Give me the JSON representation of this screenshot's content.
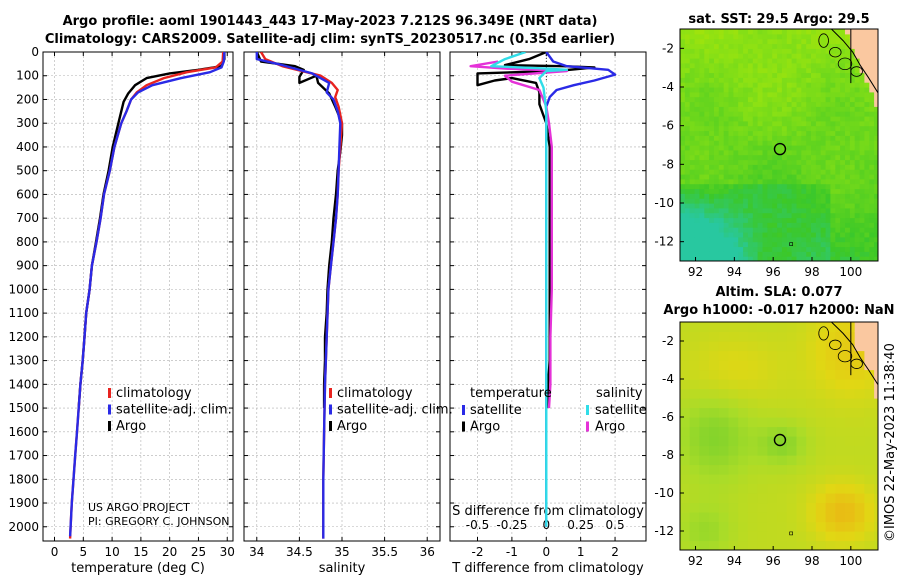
{
  "header": {
    "title_line1": "Argo profile: aoml 1901443_443 17-May-2023 7.212S 96.349E (NRT data)",
    "title_line2": "Climatology: CARS2009. Satellite-adj clim: synTS_20230517.nc (0.35d earlier)"
  },
  "credits": {
    "project": "US ARGO PROJECT",
    "pi": "PI: GREGORY C. JOHNSON",
    "imos": "©IMOS 22-May-2023 11:38:40"
  },
  "colors": {
    "climatology": "#e8231f",
    "satellite_clim": "#2a2ae6",
    "argo": "#000000",
    "salinity_satellite": "#30dde8",
    "salinity_argo": "#e532d8"
  },
  "depth_axis": {
    "ticks": [
      0,
      100,
      200,
      300,
      400,
      500,
      600,
      700,
      800,
      900,
      1000,
      1100,
      1200,
      1300,
      1400,
      1500,
      1600,
      1700,
      1800,
      1900,
      2000
    ],
    "ylim": [
      0,
      2060
    ]
  },
  "chart_data": [
    {
      "type": "line",
      "id": "temperature",
      "xlabel": "temperature (deg C)",
      "xlim": [
        -2,
        31
      ],
      "xticks": [
        0,
        5,
        10,
        15,
        20,
        25,
        30
      ],
      "legend": [
        "climatology",
        "satellite-adj. clim.",
        "Argo"
      ],
      "series": [
        {
          "name": "climatology",
          "points": [
            [
              29.3,
              0
            ],
            [
              29.2,
              40
            ],
            [
              28,
              65
            ],
            [
              23,
              85
            ],
            [
              19,
              110
            ],
            [
              16,
              140
            ],
            [
              14.3,
              170
            ],
            [
              13.3,
              200
            ],
            [
              12.5,
              250
            ],
            [
              11.6,
              300
            ],
            [
              11,
              350
            ],
            [
              10.4,
              400
            ],
            [
              9.6,
              500
            ],
            [
              8.6,
              600
            ],
            [
              8,
              700
            ],
            [
              7.3,
              800
            ],
            [
              6.5,
              900
            ],
            [
              6.1,
              1000
            ],
            [
              5.5,
              1100
            ],
            [
              5.2,
              1200
            ],
            [
              4.9,
              1300
            ],
            [
              4.5,
              1400
            ],
            [
              4.2,
              1500
            ],
            [
              3.9,
              1600
            ],
            [
              3.6,
              1700
            ],
            [
              3.3,
              1800
            ],
            [
              3.0,
              1900
            ],
            [
              2.8,
              2000
            ],
            [
              2.7,
              2050
            ]
          ]
        },
        {
          "name": "satellite-adj. clim.",
          "points": [
            [
              29.5,
              0
            ],
            [
              29.4,
              40
            ],
            [
              29,
              65
            ],
            [
              27,
              85
            ],
            [
              22,
              110
            ],
            [
              17,
              140
            ],
            [
              14.5,
              170
            ],
            [
              13.3,
              200
            ],
            [
              12.5,
              250
            ],
            [
              11.6,
              300
            ],
            [
              11,
              350
            ],
            [
              10.4,
              400
            ],
            [
              9.6,
              500
            ],
            [
              8.6,
              600
            ],
            [
              8,
              700
            ],
            [
              7.3,
              800
            ],
            [
              6.5,
              900
            ],
            [
              6.1,
              1000
            ],
            [
              5.5,
              1100
            ],
            [
              5.2,
              1200
            ],
            [
              4.9,
              1300
            ],
            [
              4.5,
              1400
            ],
            [
              4.2,
              1500
            ],
            [
              3.9,
              1600
            ],
            [
              3.6,
              1700
            ],
            [
              3.3,
              1800
            ],
            [
              3.0,
              1900
            ],
            [
              2.8,
              2000
            ],
            [
              2.7,
              2040
            ]
          ]
        },
        {
          "name": "Argo",
          "points": [
            [
              29.5,
              0
            ],
            [
              29.5,
              30
            ],
            [
              29,
              60
            ],
            [
              25,
              75
            ],
            [
              20,
              90
            ],
            [
              16,
              110
            ],
            [
              14,
              140
            ],
            [
              12.8,
              175
            ],
            [
              12,
              210
            ],
            [
              11.5,
              260
            ],
            [
              11.1,
              300
            ],
            [
              10.6,
              350
            ],
            [
              10.1,
              400
            ],
            [
              9.4,
              500
            ],
            [
              8.5,
              600
            ],
            [
              7.9,
              700
            ],
            [
              7.2,
              800
            ],
            [
              6.5,
              900
            ],
            [
              6.1,
              1000
            ],
            [
              5.5,
              1100
            ],
            [
              5.2,
              1200
            ],
            [
              4.9,
              1300
            ],
            [
              4.5,
              1400
            ],
            [
              4.2,
              1500
            ]
          ]
        }
      ]
    },
    {
      "type": "line",
      "id": "salinity",
      "xlabel": "salinity",
      "xlim": [
        33.85,
        36.15
      ],
      "xticks": [
        34,
        34.5,
        35,
        35.5,
        36
      ],
      "legend": [
        "climatology",
        "satellite-adj. clim.",
        "Argo"
      ],
      "series": [
        {
          "name": "climatology",
          "points": [
            [
              34.05,
              0
            ],
            [
              34.1,
              30
            ],
            [
              34.3,
              60
            ],
            [
              34.75,
              100
            ],
            [
              34.88,
              130
            ],
            [
              34.95,
              160
            ],
            [
              34.92,
              190
            ],
            [
              34.96,
              230
            ],
            [
              35.0,
              300
            ],
            [
              34.98,
              400
            ],
            [
              34.96,
              500
            ],
            [
              34.95,
              600
            ],
            [
              34.93,
              700
            ],
            [
              34.9,
              800
            ],
            [
              34.87,
              900
            ],
            [
              34.84,
              1000
            ],
            [
              34.82,
              1200
            ],
            [
              34.8,
              1400
            ],
            [
              34.79,
              1600
            ],
            [
              34.78,
              1800
            ],
            [
              34.78,
              2000
            ],
            [
              34.78,
              2050
            ]
          ]
        },
        {
          "name": "satellite-adj. clim.",
          "points": [
            [
              34.0,
              0
            ],
            [
              34.0,
              30
            ],
            [
              34.3,
              55
            ],
            [
              34.65,
              90
            ],
            [
              34.85,
              130
            ],
            [
              34.82,
              170
            ],
            [
              34.9,
              200
            ],
            [
              34.95,
              250
            ],
            [
              34.98,
              300
            ],
            [
              34.97,
              400
            ],
            [
              34.96,
              500
            ],
            [
              34.95,
              600
            ],
            [
              34.93,
              700
            ],
            [
              34.9,
              800
            ],
            [
              34.87,
              900
            ],
            [
              34.84,
              1000
            ],
            [
              34.82,
              1200
            ],
            [
              34.8,
              1400
            ],
            [
              34.79,
              1600
            ],
            [
              34.78,
              1800
            ],
            [
              34.78,
              2000
            ],
            [
              34.78,
              2050
            ]
          ]
        },
        {
          "name": "Argo",
          "points": [
            [
              34.0,
              0
            ],
            [
              34.05,
              40
            ],
            [
              34.45,
              60
            ],
            [
              34.55,
              75
            ],
            [
              34.5,
              105
            ],
            [
              34.5,
              130
            ],
            [
              34.7,
              100
            ],
            [
              34.72,
              130
            ],
            [
              34.85,
              175
            ],
            [
              34.92,
              230
            ],
            [
              35.0,
              300
            ],
            [
              35.0,
              350
            ],
            [
              34.98,
              420
            ],
            [
              34.95,
              500
            ],
            [
              34.93,
              600
            ],
            [
              34.9,
              700
            ],
            [
              34.88,
              800
            ],
            [
              34.85,
              900
            ],
            [
              34.83,
              1000
            ],
            [
              34.82,
              1100
            ],
            [
              34.8,
              1200
            ],
            [
              34.8,
              1300
            ],
            [
              34.79,
              1400
            ],
            [
              34.79,
              1500
            ]
          ]
        }
      ]
    },
    {
      "type": "line",
      "id": "difference",
      "xlabel": "T difference from climatology",
      "xlabel2": "S difference from climatology",
      "xlim": [
        -2.8,
        2.9
      ],
      "xticks": [
        -2,
        -1,
        0,
        1,
        2
      ],
      "xticks_labels": [
        "-2",
        "-1",
        "0",
        "1",
        "2"
      ],
      "s_ticks": [
        -0.5,
        -0.25,
        0,
        0.25,
        0.5
      ],
      "s_ticks_labels": [
        "-0.5",
        "-0.25",
        "0",
        "0.25",
        "0.5"
      ],
      "legend_left_title": "temperature",
      "legend_right_title": "salinity",
      "legend_left": [
        "satellite",
        "Argo"
      ],
      "legend_right": [
        "satellite",
        "Argo"
      ],
      "series": [
        {
          "name": "T satellite",
          "points": [
            [
              0,
              0
            ],
            [
              0.2,
              40
            ],
            [
              0.6,
              60
            ],
            [
              1.8,
              75
            ],
            [
              2.0,
              95
            ],
            [
              1.4,
              120
            ],
            [
              0.8,
              140
            ],
            [
              0.3,
              160
            ],
            [
              0.1,
              190
            ],
            [
              0,
              230
            ],
            [
              0,
              400
            ],
            [
              0,
              700
            ],
            [
              0,
              1000
            ],
            [
              0,
              1400
            ],
            [
              0,
              1800
            ],
            [
              0,
              2000
            ]
          ]
        },
        {
          "name": "T Argo",
          "points": [
            [
              0,
              0
            ],
            [
              -0.5,
              30
            ],
            [
              -1.2,
              55
            ],
            [
              0.5,
              60
            ],
            [
              1.4,
              65
            ],
            [
              0.3,
              80
            ],
            [
              -2.0,
              90
            ],
            [
              -2.0,
              140
            ],
            [
              -1.5,
              120
            ],
            [
              -1.0,
              110
            ],
            [
              -0.3,
              130
            ],
            [
              -0.2,
              170
            ],
            [
              -0.2,
              220
            ],
            [
              -0.1,
              260
            ],
            [
              0,
              300
            ],
            [
              0.1,
              400
            ],
            [
              0.1,
              500
            ],
            [
              0.1,
              600
            ],
            [
              0.1,
              700
            ],
            [
              0.1,
              800
            ],
            [
              0.1,
              900
            ],
            [
              0.1,
              1000
            ],
            [
              0.1,
              1100
            ],
            [
              0.1,
              1200
            ],
            [
              0.1,
              1300
            ],
            [
              0.05,
              1400
            ],
            [
              0.05,
              1500
            ]
          ]
        },
        {
          "name": "S satellite",
          "points": [
            [
              -0.15,
              0
            ],
            [
              -0.3,
              30
            ],
            [
              -0.4,
              60
            ],
            [
              0,
              70
            ],
            [
              0.15,
              75
            ],
            [
              0,
              80
            ],
            [
              -0.05,
              110
            ],
            [
              -0.02,
              150
            ],
            [
              0,
              250
            ],
            [
              0,
              400
            ],
            [
              0,
              700
            ],
            [
              0,
              1000
            ],
            [
              0,
              1400
            ],
            [
              0,
              1800
            ],
            [
              0,
              2000
            ]
          ]
        },
        {
          "name": "S Argo",
          "points": [
            [
              -0.35,
              40
            ],
            [
              -0.55,
              60
            ],
            [
              -0.3,
              70
            ],
            [
              0.15,
              80
            ],
            [
              -0.3,
              100
            ],
            [
              -0.25,
              125
            ],
            [
              -0.05,
              160
            ],
            [
              0,
              230
            ],
            [
              0.02,
              300
            ],
            [
              0.04,
              400
            ],
            [
              0.04,
              600
            ],
            [
              0.04,
              800
            ],
            [
              0.04,
              1000
            ],
            [
              0.03,
              1200
            ],
            [
              0.03,
              1400
            ],
            [
              0.02,
              1500
            ]
          ]
        }
      ]
    }
  ],
  "maps": [
    {
      "id": "sst",
      "title": "sat. SST: 29.5 Argo: 29.5",
      "subtitle": "",
      "xlim": [
        91.2,
        101.4
      ],
      "ylim": [
        -13.0,
        -1.0
      ],
      "xticks": [
        92,
        94,
        96,
        98,
        100
      ],
      "yticks": [
        -2,
        -4,
        -6,
        -8,
        -10,
        -12
      ],
      "marker": [
        96.35,
        -7.21
      ],
      "style": "sst"
    },
    {
      "id": "sla",
      "title": "Altim. SLA: 0.077",
      "subtitle": "Argo h1000: -0.017 h2000: NaN",
      "xlim": [
        91.2,
        101.4
      ],
      "ylim": [
        -13.0,
        -1.0
      ],
      "xticks": [
        92,
        94,
        96,
        98,
        100
      ],
      "yticks": [
        -2,
        -4,
        -6,
        -8,
        -10,
        -12
      ],
      "marker": [
        96.35,
        -7.21
      ],
      "style": "sla"
    }
  ]
}
